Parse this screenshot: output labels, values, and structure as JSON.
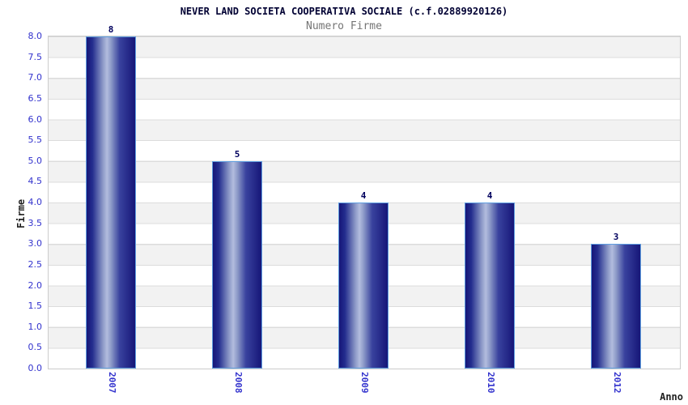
{
  "chart_data": {
    "type": "bar",
    "title": "NEVER LAND SOCIETA COOPERATIVA SOCIALE (c.f.02889920126)",
    "subtitle": "Numero Firme",
    "xlabel": "Anno",
    "ylabel": "Firme",
    "categories": [
      "2007",
      "2008",
      "2009",
      "2010",
      "2012"
    ],
    "values": [
      8,
      5,
      4,
      4,
      3
    ],
    "bar_value_labels": [
      "8",
      "5",
      "4",
      "4",
      "3"
    ],
    "ylim": [
      0.0,
      8.0
    ],
    "ytick_step": 0.5,
    "ytick_labels": [
      "0.0",
      "0.5",
      "1.0",
      "1.5",
      "2.0",
      "2.5",
      "3.0",
      "3.5",
      "4.0",
      "4.5",
      "5.0",
      "5.5",
      "6.0",
      "6.5",
      "7.0",
      "7.5",
      "8.0"
    ],
    "legend_position": "none",
    "grid": "horizontal-stripes-every-0.5",
    "colors": {
      "background": "#ffffff",
      "stripe_gray": "#f2f2f2",
      "stripe_white": "#ffffff",
      "gridline": "#dcdcdc",
      "plot_border": "#cccccc",
      "bar_edge_dark": "#161678",
      "bar_mid_dark": "#232d8e",
      "bar_center_light": "#b2bcde",
      "bar_border": "#5f9ee0",
      "tick_label_blue": "#3232cd",
      "title_color": "#000033",
      "subtitle_color": "#757575",
      "value_label_color": "#00005e",
      "axis_title_color": "#1f1f1f"
    }
  }
}
